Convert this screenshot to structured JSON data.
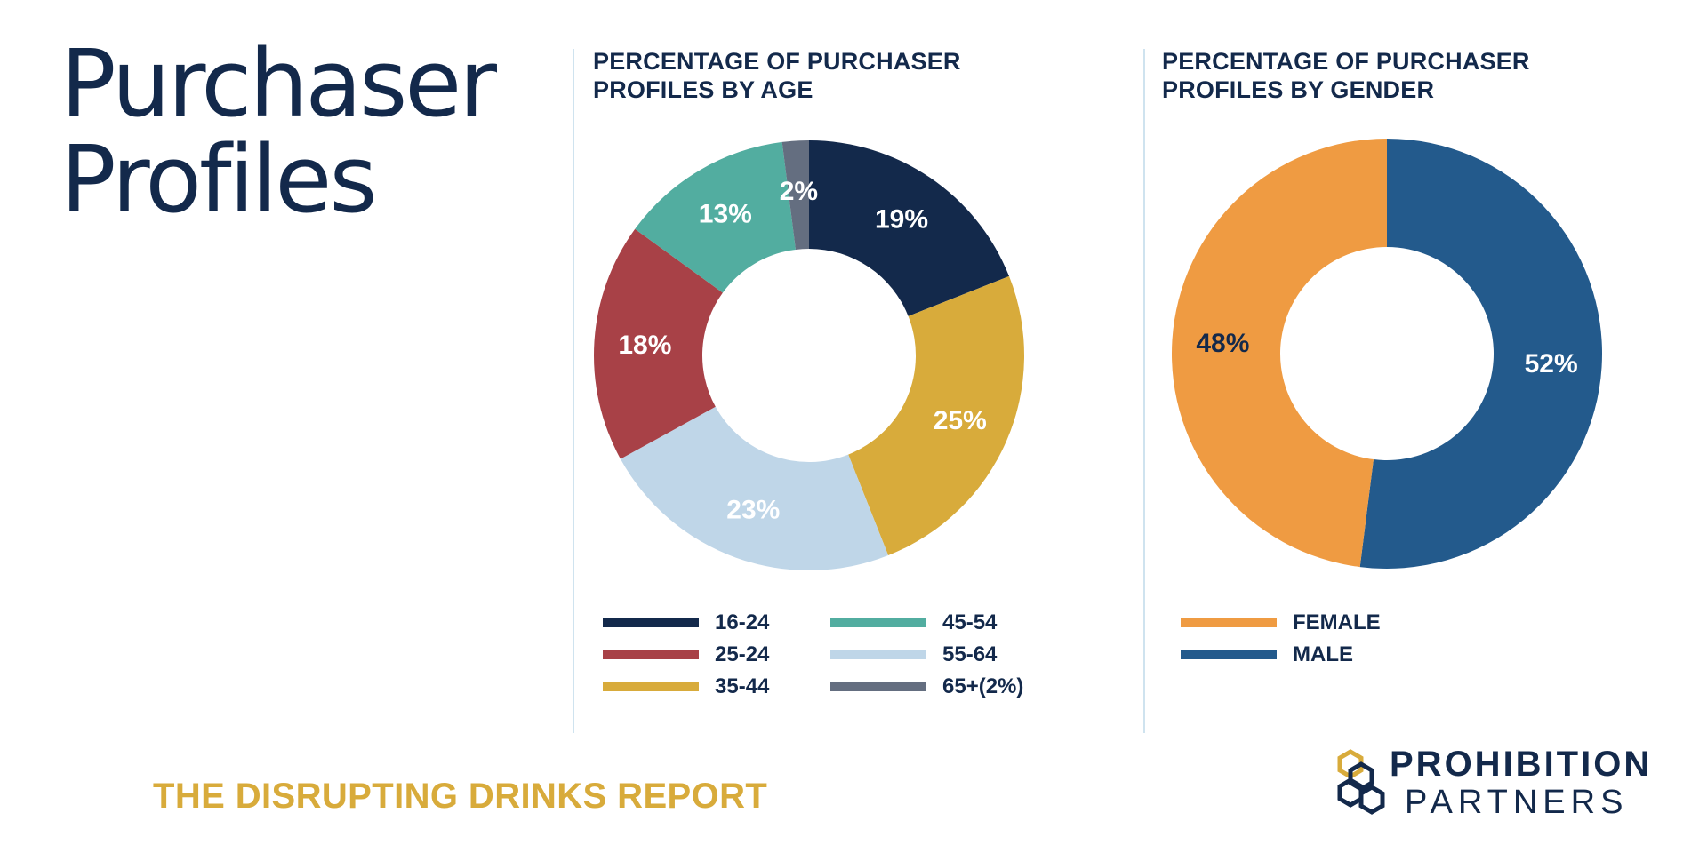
{
  "page": {
    "title_line1": "Purchaser",
    "title_line2": "Profiles",
    "footer": "THE DISRUPTING DRINKS REPORT"
  },
  "logo": {
    "line1": "PROHIBITION",
    "line2": "PARTNERS",
    "colors": {
      "navy": "#13294b",
      "gold": "#d8ab3b"
    }
  },
  "chart_data": [
    {
      "type": "pie",
      "title_line1": "PERCENTAGE OF PURCHASER",
      "title_line2": "PROFILES BY AGE",
      "legend_position": "bottom",
      "slices": [
        {
          "label": "16-24",
          "value": 19,
          "display": "19%",
          "color": "#13294b",
          "label_color": "#ffffff"
        },
        {
          "label": "35-44",
          "value": 25,
          "display": "25%",
          "color": "#d8ab3b",
          "label_color": "#ffffff"
        },
        {
          "label": "55-64",
          "value": 23,
          "display": "23%",
          "color": "#bfd6e8",
          "label_color": "#ffffff"
        },
        {
          "label": "25-24",
          "value": 18,
          "display": "18%",
          "color": "#a84147",
          "label_color": "#ffffff"
        },
        {
          "label": "45-54",
          "value": 13,
          "display": "13%",
          "color": "#52ada0",
          "label_color": "#ffffff"
        },
        {
          "label": "65+(2%)",
          "value": 2,
          "display": "2%",
          "color": "#646e80",
          "label_color": "#ffffff"
        }
      ],
      "legend": [
        {
          "label": "16-24",
          "color": "#13294b"
        },
        {
          "label": "25-24",
          "color": "#a84147"
        },
        {
          "label": "35-44",
          "color": "#d8ab3b"
        },
        {
          "label": "45-54",
          "color": "#52ada0"
        },
        {
          "label": "55-64",
          "color": "#bfd6e8"
        },
        {
          "label": "65+(2%)",
          "color": "#646e80"
        }
      ]
    },
    {
      "type": "pie",
      "title_line1": "PERCENTAGE OF PURCHASER",
      "title_line2": "PROFILES BY GENDER",
      "legend_position": "bottom",
      "slices": [
        {
          "label": "MALE",
          "value": 52,
          "display": "52%",
          "color": "#235a8c",
          "label_color": "#ffffff"
        },
        {
          "label": "FEMALE",
          "value": 48,
          "display": "48%",
          "color": "#ef9b42",
          "label_color": "#13294b"
        }
      ],
      "legend": [
        {
          "label": "FEMALE",
          "color": "#ef9b42"
        },
        {
          "label": "MALE",
          "color": "#235a8c"
        }
      ]
    }
  ]
}
